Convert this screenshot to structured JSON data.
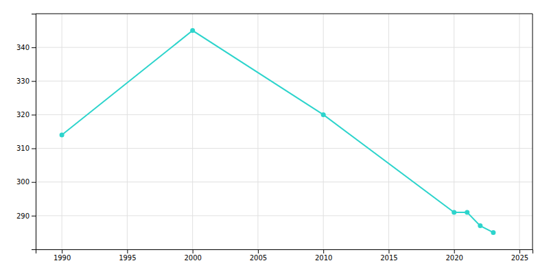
{
  "chart_data": {
    "type": "line",
    "x": [
      1990,
      2000,
      2010,
      2020,
      2021,
      2022,
      2023
    ],
    "values": [
      314,
      345,
      320,
      291,
      291,
      287,
      285
    ],
    "color": "#2DD4CC",
    "marker": "circle",
    "xlim": [
      1988,
      2026
    ],
    "ylim": [
      280,
      350
    ],
    "xticks": [
      1990,
      1995,
      2000,
      2005,
      2010,
      2015,
      2020,
      2025
    ],
    "yticks": [
      290,
      300,
      310,
      320,
      330,
      340
    ],
    "grid": true
  }
}
